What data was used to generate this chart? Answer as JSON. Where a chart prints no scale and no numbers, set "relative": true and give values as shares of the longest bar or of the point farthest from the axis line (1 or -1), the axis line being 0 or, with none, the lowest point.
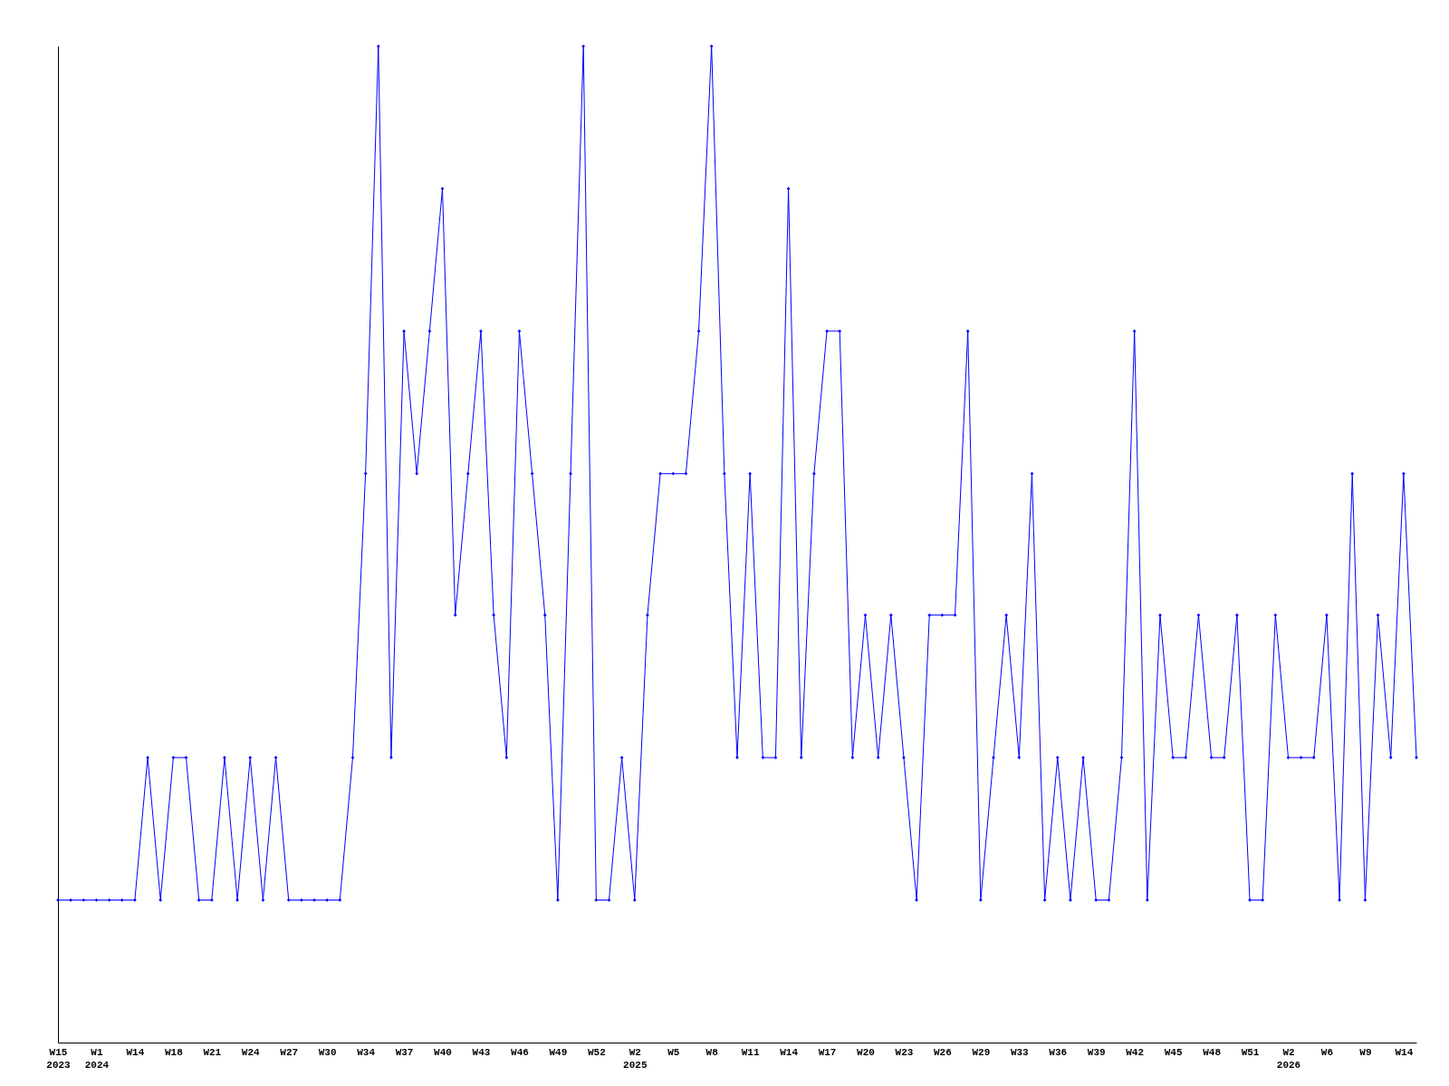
{
  "chart_data": {
    "type": "line",
    "relative": true,
    "tick_labels": "x",
    "grid": false,
    "legend": false,
    "marker": "diamond",
    "line_style": "solid",
    "categories": [
      "W15\n2023",
      null,
      null,
      "W1\n2024",
      null,
      null,
      "W14",
      null,
      null,
      "W18",
      null,
      null,
      "W21",
      null,
      null,
      "W24",
      null,
      null,
      "W27",
      null,
      null,
      "W30",
      null,
      null,
      "W34",
      null,
      null,
      "W37",
      null,
      null,
      "W40",
      null,
      null,
      "W43",
      null,
      null,
      "W46",
      null,
      null,
      "W49",
      null,
      null,
      "W52",
      null,
      null,
      "W2\n2025",
      null,
      null,
      "W5",
      null,
      null,
      "W8",
      null,
      null,
      "W11",
      null,
      null,
      "W14",
      null,
      null,
      "W17",
      null,
      null,
      "W20",
      null,
      null,
      "W23",
      null,
      null,
      "W26",
      null,
      null,
      "W29",
      null,
      null,
      "W33",
      null,
      null,
      "W36",
      null,
      null,
      "W39",
      null,
      null,
      "W42",
      null,
      null,
      "W45",
      null,
      null,
      "W48",
      null,
      null,
      "W51",
      null,
      null,
      "W2\n2026",
      null,
      null,
      "W6",
      null,
      null,
      "W9",
      null,
      null,
      "W14",
      null
    ],
    "series": [
      {
        "color": "#0000ff",
        "values": [
          0.143,
          0.143,
          0.143,
          0.143,
          0.143,
          0.143,
          0.143,
          0.286,
          0.143,
          0.286,
          0.286,
          0.143,
          0.143,
          0.286,
          0.143,
          0.286,
          0.143,
          0.286,
          0.143,
          0.143,
          0.143,
          0.143,
          0.143,
          0.286,
          0.571,
          1,
          0.286,
          0.714,
          0.571,
          0.714,
          0.857,
          0.429,
          0.571,
          0.714,
          0.429,
          0.286,
          0.714,
          0.571,
          0.429,
          0.143,
          0.571,
          1,
          0.143,
          0.143,
          0.286,
          0.143,
          0.429,
          0.571,
          0.571,
          0.571,
          0.714,
          1,
          0.571,
          0.286,
          0.571,
          0.286,
          0.286,
          0.857,
          0.286,
          0.571,
          0.714,
          0.714,
          0.286,
          0.429,
          0.286,
          0.429,
          0.286,
          0.143,
          0.429,
          0.429,
          0.429,
          0.714,
          0.143,
          0.286,
          0.429,
          0.286,
          0.571,
          0.143,
          0.286,
          0.143,
          0.286,
          0.143,
          0.143,
          0.286,
          0.714,
          0.143,
          0.429,
          0.286,
          0.286,
          0.429,
          0.286,
          0.286,
          0.429,
          0.143,
          0.143,
          0.429,
          0.286,
          0.286,
          0.286,
          0.429,
          0.143,
          0.571,
          0.143,
          0.429,
          0.286,
          0.571,
          0.286
        ]
      }
    ]
  }
}
